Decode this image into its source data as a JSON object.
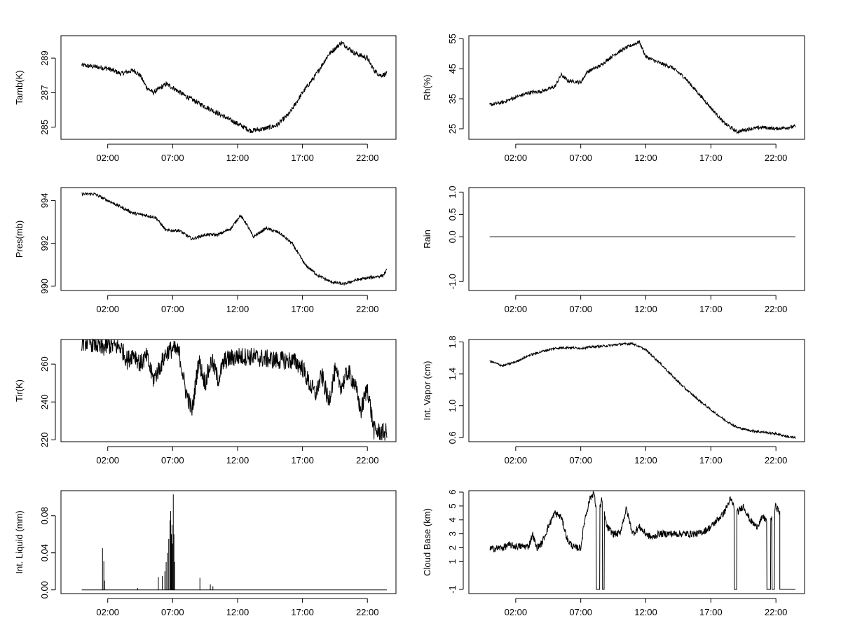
{
  "chart_data": [
    {
      "type": "line",
      "ylabel": "Tamb(K)",
      "ylim": [
        284.3,
        290.3
      ],
      "yticks": [
        285,
        287,
        289
      ],
      "ytick_labels": [
        "285",
        "287",
        "289"
      ],
      "xlim": [
        -1.6,
        24.2
      ],
      "xticks": [
        2,
        7,
        12,
        17,
        22
      ],
      "xtick_labels": [
        "02:00",
        "07:00",
        "12:00",
        "17:00",
        "22:00"
      ],
      "x_range": [
        0,
        23.5
      ],
      "keypoints": [
        [
          0,
          288.6
        ],
        [
          1,
          288.5
        ],
        [
          2,
          288.4
        ],
        [
          3,
          288.1
        ],
        [
          4,
          288.3
        ],
        [
          4.5,
          288.0
        ],
        [
          5.0,
          287.3
        ],
        [
          5.5,
          287.0
        ],
        [
          6.5,
          287.5
        ],
        [
          7.0,
          287.3
        ],
        [
          8,
          286.8
        ],
        [
          9,
          286.4
        ],
        [
          10,
          286.0
        ],
        [
          11,
          285.6
        ],
        [
          12,
          285.2
        ],
        [
          13,
          284.8
        ],
        [
          14,
          284.9
        ],
        [
          15,
          285.1
        ],
        [
          16,
          285.8
        ],
        [
          17,
          287.0
        ],
        [
          18,
          288.0
        ],
        [
          19,
          289.2
        ],
        [
          20,
          289.9
        ],
        [
          21,
          289.3
        ],
        [
          22,
          289.0
        ],
        [
          22.5,
          288.3
        ],
        [
          23,
          288.0
        ],
        [
          23.5,
          288.1
        ]
      ],
      "noise": 0.14
    },
    {
      "type": "line",
      "ylabel": "Rh(%)",
      "ylim": [
        21.5,
        56
      ],
      "yticks": [
        25,
        35,
        45,
        55
      ],
      "ytick_labels": [
        "25",
        "35",
        "45",
        "55"
      ],
      "xlim": [
        -1.6,
        24.2
      ],
      "xticks": [
        2,
        7,
        12,
        17,
        22
      ],
      "xtick_labels": [
        "02:00",
        "07:00",
        "12:00",
        "17:00",
        "22:00"
      ],
      "x_range": [
        0,
        23.5
      ],
      "keypoints": [
        [
          0,
          33
        ],
        [
          1,
          33.8
        ],
        [
          2,
          35.5
        ],
        [
          3,
          37
        ],
        [
          4,
          37.5
        ],
        [
          5,
          39
        ],
        [
          5.5,
          43
        ],
        [
          6,
          41
        ],
        [
          7,
          40.5
        ],
        [
          7.5,
          44
        ],
        [
          8.5,
          46
        ],
        [
          9.5,
          49.5
        ],
        [
          10.5,
          52
        ],
        [
          11.5,
          54
        ],
        [
          12,
          49
        ],
        [
          13,
          47
        ],
        [
          14,
          45.5
        ],
        [
          15,
          42
        ],
        [
          16,
          37
        ],
        [
          17,
          32
        ],
        [
          18,
          27
        ],
        [
          19,
          24
        ],
        [
          20,
          25
        ],
        [
          21,
          25.5
        ],
        [
          22,
          25
        ],
        [
          23,
          25.5
        ],
        [
          23.5,
          25.8
        ]
      ],
      "noise": 0.6
    },
    {
      "type": "line",
      "ylabel": "Pres(mb)",
      "ylim": [
        989.8,
        994.6
      ],
      "yticks": [
        990,
        992,
        994
      ],
      "ytick_labels": [
        "990",
        "992",
        "994"
      ],
      "xlim": [
        -1.6,
        24.2
      ],
      "xticks": [
        2,
        7,
        12,
        17,
        22
      ],
      "xtick_labels": [
        "02:00",
        "07:00",
        "12:00",
        "17:00",
        "22:00"
      ],
      "x_range": [
        0,
        23.5
      ],
      "keypoints": [
        [
          0,
          994.3
        ],
        [
          1,
          994.3
        ],
        [
          2,
          994.0
        ],
        [
          3,
          993.7
        ],
        [
          4,
          993.4
        ],
        [
          5,
          993.3
        ],
        [
          5.7,
          993.2
        ],
        [
          6.5,
          992.6
        ],
        [
          7.5,
          992.6
        ],
        [
          8.5,
          992.2
        ],
        [
          9.5,
          992.4
        ],
        [
          10.5,
          992.4
        ],
        [
          11.5,
          992.7
        ],
        [
          12.2,
          993.3
        ],
        [
          12.7,
          992.9
        ],
        [
          13.2,
          992.3
        ],
        [
          14.2,
          992.7
        ],
        [
          15.2,
          992.5
        ],
        [
          16.2,
          992.0
        ],
        [
          17.2,
          991.0
        ],
        [
          18.2,
          990.5
        ],
        [
          19.2,
          990.2
        ],
        [
          20.2,
          990.1
        ],
        [
          21.2,
          990.3
        ],
        [
          22.2,
          990.4
        ],
        [
          23.2,
          990.5
        ],
        [
          23.5,
          990.75
        ]
      ],
      "noise": 0.07
    },
    {
      "type": "line",
      "ylabel": "Rain",
      "ylim": [
        -1.2,
        1.1
      ],
      "yticks": [
        -1.0,
        0.0,
        0.5,
        1.0
      ],
      "ytick_labels": [
        "-1.0",
        "0.0",
        "0.5",
        "1.0"
      ],
      "xlim": [
        -1.6,
        24.2
      ],
      "xticks": [
        2,
        7,
        12,
        17,
        22
      ],
      "xtick_labels": [
        "02:00",
        "07:00",
        "12:00",
        "17:00",
        "22:00"
      ],
      "x_range": [
        0,
        23.5
      ],
      "keypoints": [
        [
          0,
          0.0
        ],
        [
          23.5,
          0.0
        ]
      ],
      "noise": 0
    },
    {
      "type": "line",
      "ylabel": "Tir(K)",
      "ylim": [
        219,
        273
      ],
      "yticks": [
        220,
        240,
        260
      ],
      "ytick_labels": [
        "220",
        "240",
        "260"
      ],
      "xlim": [
        -1.6,
        24.2
      ],
      "xticks": [
        2,
        7,
        12,
        17,
        22
      ],
      "xtick_labels": [
        "02:00",
        "07:00",
        "12:00",
        "17:00",
        "22:00"
      ],
      "x_range": [
        0,
        23.5
      ],
      "keypoints": [
        [
          0,
          272
        ],
        [
          1,
          271
        ],
        [
          1.5,
          268
        ],
        [
          2.0,
          270
        ],
        [
          3.0,
          269
        ],
        [
          3.5,
          262
        ],
        [
          4,
          266
        ],
        [
          4.5,
          260
        ],
        [
          5,
          264
        ],
        [
          5.5,
          252
        ],
        [
          6,
          258
        ],
        [
          6.5,
          266
        ],
        [
          7,
          268
        ],
        [
          7.5,
          266
        ],
        [
          8,
          246
        ],
        [
          8.5,
          235
        ],
        [
          9,
          262
        ],
        [
          9.5,
          250
        ],
        [
          10,
          262
        ],
        [
          10.5,
          252
        ],
        [
          11,
          262
        ],
        [
          12,
          264
        ],
        [
          13,
          264
        ],
        [
          14,
          263
        ],
        [
          15,
          262
        ],
        [
          16,
          262
        ],
        [
          16.5,
          261
        ],
        [
          17,
          258
        ],
        [
          17.5,
          250
        ],
        [
          18,
          244
        ],
        [
          18.5,
          254
        ],
        [
          19,
          240
        ],
        [
          19.5,
          256
        ],
        [
          20,
          248
        ],
        [
          20.5,
          256
        ],
        [
          21,
          250
        ],
        [
          21.5,
          235
        ],
        [
          22,
          248
        ],
        [
          22.5,
          225
        ],
        [
          23,
          224
        ],
        [
          23.5,
          224
        ]
      ],
      "noise": 5
    },
    {
      "type": "line",
      "ylabel": "Int. Vapor (cm)",
      "ylim": [
        0.55,
        1.83
      ],
      "yticks": [
        0.6,
        1.0,
        1.4,
        1.8
      ],
      "ytick_labels": [
        "0.6",
        "1.0",
        "1.4",
        "1.8"
      ],
      "xlim": [
        -1.6,
        24.2
      ],
      "xticks": [
        2,
        7,
        12,
        17,
        22
      ],
      "xtick_labels": [
        "02:00",
        "07:00",
        "12:00",
        "17:00",
        "22:00"
      ],
      "x_range": [
        0,
        23.5
      ],
      "keypoints": [
        [
          0,
          1.56
        ],
        [
          1,
          1.5
        ],
        [
          2,
          1.55
        ],
        [
          3,
          1.63
        ],
        [
          4,
          1.68
        ],
        [
          5,
          1.72
        ],
        [
          6,
          1.73
        ],
        [
          7,
          1.72
        ],
        [
          8,
          1.74
        ],
        [
          9,
          1.75
        ],
        [
          10,
          1.77
        ],
        [
          11,
          1.78
        ],
        [
          12,
          1.7
        ],
        [
          13,
          1.55
        ],
        [
          14,
          1.38
        ],
        [
          15,
          1.22
        ],
        [
          16,
          1.08
        ],
        [
          17,
          0.95
        ],
        [
          18,
          0.83
        ],
        [
          19,
          0.73
        ],
        [
          20,
          0.69
        ],
        [
          21,
          0.67
        ],
        [
          22,
          0.65
        ],
        [
          23,
          0.61
        ],
        [
          23.5,
          0.6
        ]
      ],
      "noise": 0.014
    },
    {
      "type": "spikes",
      "ylabel": "Int. Liquid (mm)",
      "ylim": [
        -0.004,
        0.107
      ],
      "yticks": [
        0.0,
        0.04,
        0.08
      ],
      "ytick_labels": [
        "0.00",
        "0.04",
        "0.08"
      ],
      "xlim": [
        -1.6,
        24.2
      ],
      "xticks": [
        2,
        7,
        12,
        17,
        22
      ],
      "xtick_labels": [
        "02:00",
        "07:00",
        "12:00",
        "17:00",
        "22:00"
      ],
      "x_range": [
        0,
        23.5
      ],
      "baseline": 0,
      "spikes": [
        [
          1.6,
          0.045
        ],
        [
          1.7,
          0.031
        ],
        [
          1.75,
          0.01
        ],
        [
          4.3,
          0.002
        ],
        [
          5.9,
          0.014
        ],
        [
          6.2,
          0.015
        ],
        [
          6.4,
          0.02
        ],
        [
          6.5,
          0.03
        ],
        [
          6.6,
          0.04
        ],
        [
          6.7,
          0.055
        ],
        [
          6.8,
          0.075
        ],
        [
          6.85,
          0.085
        ],
        [
          6.9,
          0.06
        ],
        [
          6.95,
          0.07
        ],
        [
          7.0,
          0.05
        ],
        [
          7.05,
          0.103
        ],
        [
          7.1,
          0.06
        ],
        [
          7.15,
          0.03
        ],
        [
          9.1,
          0.013
        ],
        [
          9.9,
          0.006
        ],
        [
          10.1,
          0.004
        ]
      ]
    },
    {
      "type": "line",
      "ylabel": "Cloud Base (km)",
      "ylim": [
        -1.3,
        6.1
      ],
      "yticks": [
        -1,
        1,
        2,
        3,
        4,
        5,
        6
      ],
      "ytick_labels": [
        "-1",
        "1",
        "2",
        "3",
        "4",
        "5",
        "6"
      ],
      "xlim": [
        -1.6,
        24.2
      ],
      "xticks": [
        2,
        7,
        12,
        17,
        22
      ],
      "xtick_labels": [
        "02:00",
        "07:00",
        "12:00",
        "17:00",
        "22:00"
      ],
      "x_range": [
        0,
        23.5
      ],
      "keypoints": [
        [
          0,
          1.9
        ],
        [
          1,
          2.0
        ],
        [
          1.5,
          2.2
        ],
        [
          2,
          2.1
        ],
        [
          3,
          2.1
        ],
        [
          3.3,
          3.0
        ],
        [
          3.6,
          2.0
        ],
        [
          4,
          2.3
        ],
        [
          4.5,
          3.5
        ],
        [
          5,
          4.5
        ],
        [
          5.5,
          4.2
        ],
        [
          6,
          2.5
        ],
        [
          6.5,
          2.0
        ],
        [
          7,
          2.0
        ],
        [
          7.3,
          4.0
        ],
        [
          7.7,
          5.5
        ],
        [
          8.0,
          6.0
        ],
        [
          8.3,
          4.0
        ],
        [
          8.6,
          5.5
        ],
        [
          9,
          3.5
        ],
        [
          9.5,
          3.0
        ],
        [
          10,
          3.0
        ],
        [
          10.5,
          4.8
        ],
        [
          11,
          3.0
        ],
        [
          11.5,
          3.5
        ],
        [
          12,
          3.0
        ],
        [
          12.5,
          2.7
        ],
        [
          13,
          3.0
        ],
        [
          14,
          3.0
        ],
        [
          15,
          3.0
        ],
        [
          16,
          3.0
        ],
        [
          16.5,
          3.2
        ],
        [
          17,
          3.5
        ],
        [
          17.5,
          4.0
        ],
        [
          18,
          4.5
        ],
        [
          18.5,
          5.5
        ],
        [
          19,
          4.5
        ],
        [
          19.5,
          5.0
        ],
        [
          20,
          4.0
        ],
        [
          20.5,
          3.5
        ],
        [
          21,
          4.2
        ],
        [
          21.5,
          3.8
        ],
        [
          22,
          5.0
        ],
        [
          22.3,
          4.5
        ]
      ],
      "after_x": 22.3,
      "after_y": -1,
      "noise": 0.25,
      "dropouts": [
        [
          8.2,
          8.45
        ],
        [
          8.65,
          8.8
        ],
        [
          18.8,
          19.0
        ],
        [
          21.3,
          21.6
        ],
        [
          21.7,
          21.9
        ]
      ],
      "dropout_value": -1
    }
  ]
}
